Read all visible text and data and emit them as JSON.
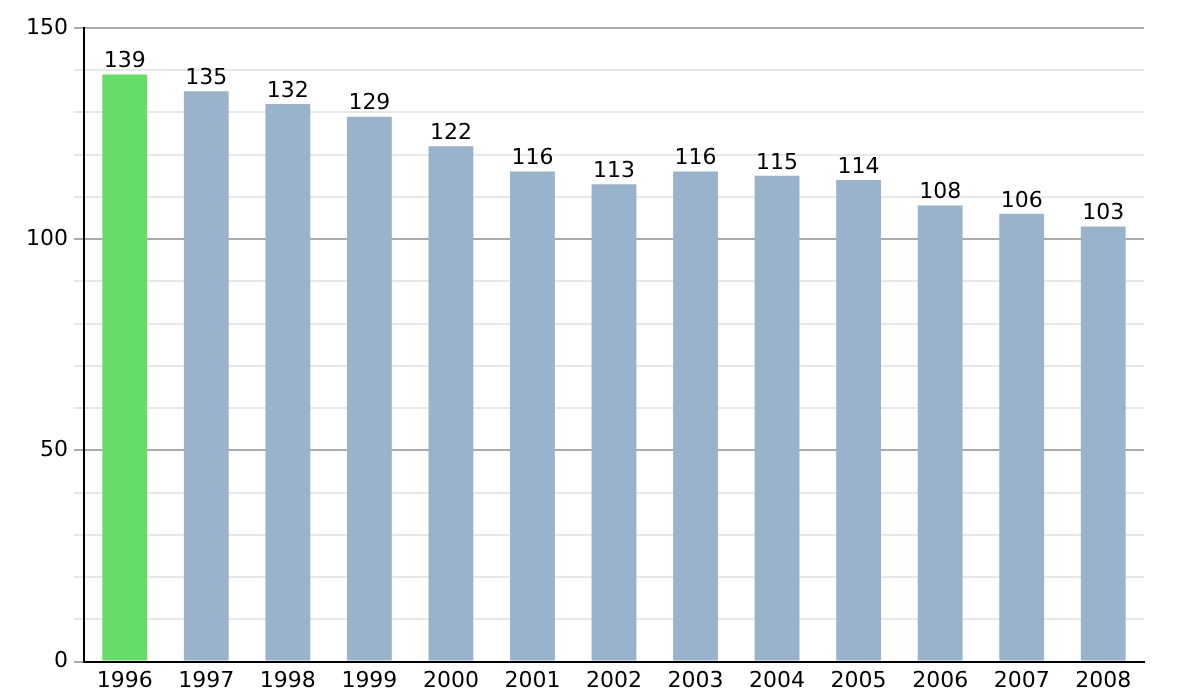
{
  "chart_data": {
    "type": "bar",
    "categories": [
      "1996",
      "1997",
      "1998",
      "1999",
      "2000",
      "2001",
      "2002",
      "2003",
      "2004",
      "2005",
      "2006",
      "2007",
      "2008"
    ],
    "values": [
      139,
      135,
      132,
      129,
      122,
      116,
      113,
      116,
      115,
      114,
      108,
      106,
      103
    ],
    "colors": [
      "#66dd66",
      "#9ab3cc",
      "#9ab3cc",
      "#9ab3cc",
      "#9ab3cc",
      "#9ab3cc",
      "#9ab3cc",
      "#9ab3cc",
      "#9ab3cc",
      "#9ab3cc",
      "#9ab3cc",
      "#9ab3cc",
      "#9ab3cc"
    ],
    "ylim": [
      0,
      150
    ],
    "yticks": [
      0,
      {
        "value": 10,
        "label": null
      },
      {
        "value": 20,
        "label": null
      },
      {
        "value": 30,
        "label": null
      },
      {
        "value": 40,
        "label": null
      },
      50,
      {
        "value": 60,
        "label": null
      },
      {
        "value": 70,
        "label": null
      },
      {
        "value": 80,
        "label": null
      },
      {
        "value": 90,
        "label": null
      },
      100,
      {
        "value": 110,
        "label": null
      },
      {
        "value": 120,
        "label": null
      },
      {
        "value": 130,
        "label": null
      },
      {
        "value": 140,
        "label": null
      },
      150
    ],
    "grid": "y",
    "data_labels": true,
    "legend": false
  }
}
